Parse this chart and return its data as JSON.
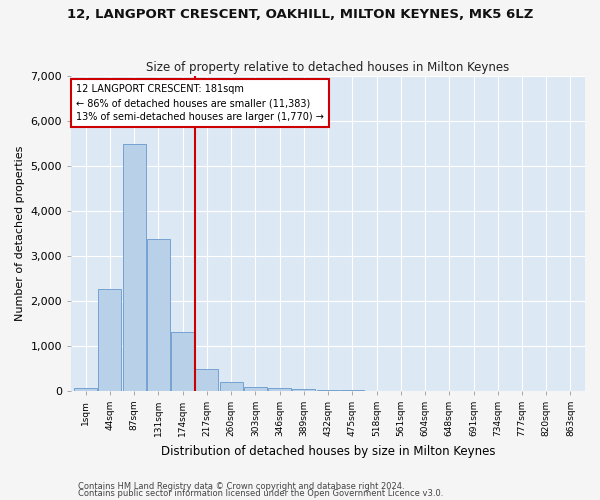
{
  "title": "12, LANGPORT CRESCENT, OAKHILL, MILTON KEYNES, MK5 6LZ",
  "subtitle": "Size of property relative to detached houses in Milton Keynes",
  "xlabel": "Distribution of detached houses by size in Milton Keynes",
  "ylabel": "Number of detached properties",
  "footnote1": "Contains HM Land Registry data © Crown copyright and database right 2024.",
  "footnote2": "Contains public sector information licensed under the Open Government Licence v3.0.",
  "annotation_line1": "12 LANGPORT CRESCENT: 181sqm",
  "annotation_line2": "← 86% of detached houses are smaller (11,383)",
  "annotation_line3": "13% of semi-detached houses are larger (1,770) →",
  "bar_color": "#b8d0e8",
  "bar_edge_color": "#6699cc",
  "ref_line_color": "#cc0000",
  "ref_line_bin": 4,
  "background_color": "#dde8f5",
  "plot_bg_color": "#dde8f5",
  "fig_bg_color": "#f5f5f5",
  "grid_color": "#ffffff",
  "categories": [
    "1sqm",
    "44sqm",
    "87sqm",
    "131sqm",
    "174sqm",
    "217sqm",
    "260sqm",
    "303sqm",
    "346sqm",
    "389sqm",
    "432sqm",
    "475sqm",
    "518sqm",
    "561sqm",
    "604sqm",
    "648sqm",
    "691sqm",
    "734sqm",
    "777sqm",
    "820sqm",
    "863sqm"
  ],
  "values": [
    60,
    2270,
    5480,
    3380,
    1300,
    490,
    200,
    90,
    55,
    30,
    15,
    8,
    5,
    3,
    2,
    2,
    1,
    1,
    1,
    0,
    0
  ],
  "ylim": [
    0,
    7000
  ],
  "yticks": [
    0,
    1000,
    2000,
    3000,
    4000,
    5000,
    6000,
    7000
  ],
  "num_bins": 21
}
